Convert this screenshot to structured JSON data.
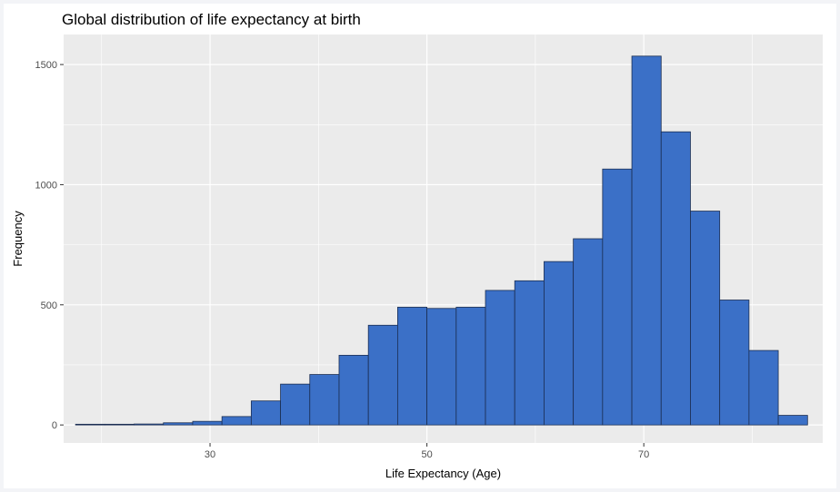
{
  "chart_data": {
    "type": "bar",
    "title": "Global distribution of life expectancy at birth",
    "xlabel": "Life Expectancy (Age)",
    "ylabel": "Frequency",
    "xlim": [
      16.5,
      86.5
    ],
    "ylim": [
      -75,
      1625
    ],
    "x_ticks": [
      30,
      50,
      70
    ],
    "y_ticks": [
      0,
      500,
      1000,
      1500
    ],
    "bin_width": 2.7,
    "bins": [
      {
        "x0": 17.6,
        "x1": 20.3,
        "value": 3
      },
      {
        "x0": 20.3,
        "x1": 23.0,
        "value": 3
      },
      {
        "x0": 23.0,
        "x1": 25.7,
        "value": 4
      },
      {
        "x0": 25.7,
        "x1": 28.4,
        "value": 9
      },
      {
        "x0": 28.4,
        "x1": 31.1,
        "value": 15
      },
      {
        "x0": 31.1,
        "x1": 33.8,
        "value": 35
      },
      {
        "x0": 33.8,
        "x1": 36.5,
        "value": 100
      },
      {
        "x0": 36.5,
        "x1": 39.2,
        "value": 170
      },
      {
        "x0": 39.2,
        "x1": 41.9,
        "value": 210
      },
      {
        "x0": 41.9,
        "x1": 44.6,
        "value": 290
      },
      {
        "x0": 44.6,
        "x1": 47.3,
        "value": 415
      },
      {
        "x0": 47.3,
        "x1": 50.0,
        "value": 490
      },
      {
        "x0": 50.0,
        "x1": 52.7,
        "value": 485
      },
      {
        "x0": 52.7,
        "x1": 55.4,
        "value": 490
      },
      {
        "x0": 55.4,
        "x1": 58.1,
        "value": 560
      },
      {
        "x0": 58.1,
        "x1": 60.8,
        "value": 600
      },
      {
        "x0": 60.8,
        "x1": 63.5,
        "value": 680
      },
      {
        "x0": 63.5,
        "x1": 66.2,
        "value": 775
      },
      {
        "x0": 66.2,
        "x1": 68.9,
        "value": 1065
      },
      {
        "x0": 68.9,
        "x1": 71.6,
        "value": 1535
      },
      {
        "x0": 71.6,
        "x1": 74.3,
        "value": 1220
      },
      {
        "x0": 74.3,
        "x1": 77.0,
        "value": 890
      },
      {
        "x0": 77.0,
        "x1": 79.7,
        "value": 520
      },
      {
        "x0": 79.7,
        "x1": 82.4,
        "value": 310
      },
      {
        "x0": 82.4,
        "x1": 85.1,
        "value": 40
      }
    ],
    "grid": true,
    "colors": {
      "panel": "#ebebeb",
      "grid_major": "#ffffff",
      "bar_fill": "#3b70c7",
      "bar_stroke": "#1b2e52"
    }
  }
}
